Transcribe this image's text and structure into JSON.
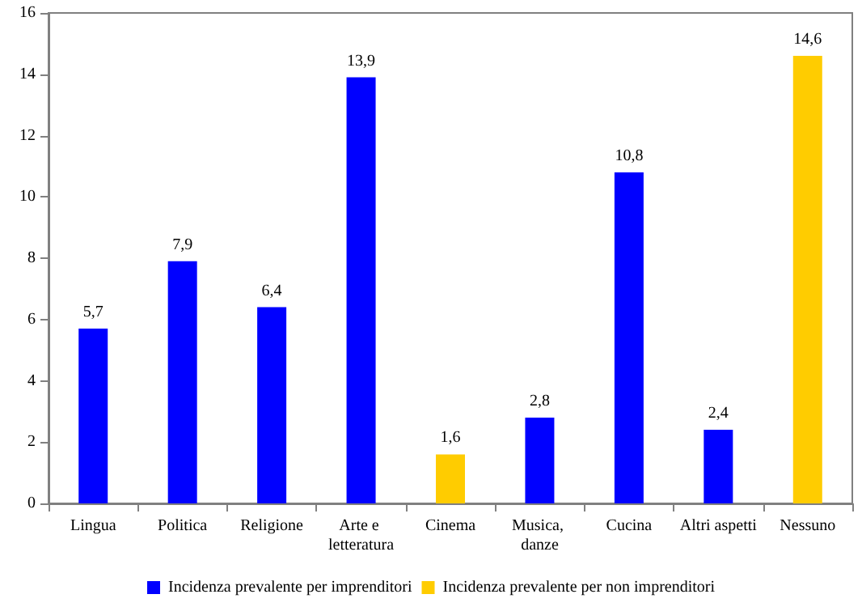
{
  "chart_data": {
    "type": "bar",
    "categories": [
      "Lingua",
      "Politica",
      "Religione",
      "Arte e letteratura",
      "Cinema",
      "Musica, danze",
      "Cucina",
      "Altri aspetti",
      "Nessuno"
    ],
    "series": [
      {
        "name": "Incidenza prevalente per imprenditori",
        "color": "#0000ff",
        "values": [
          5.7,
          7.9,
          6.4,
          13.9,
          null,
          2.8,
          10.8,
          2.4,
          null
        ],
        "value_labels": [
          "5,7",
          "7,9",
          "6,4",
          "13,9",
          null,
          "2,8",
          "10,8",
          "2,4",
          null
        ]
      },
      {
        "name": "Incidenza prevalente per non imprenditori",
        "color": "#ffcc00",
        "values": [
          null,
          null,
          null,
          null,
          1.6,
          null,
          null,
          null,
          14.6
        ],
        "value_labels": [
          null,
          null,
          null,
          null,
          "1,6",
          null,
          null,
          null,
          "14,6"
        ]
      }
    ],
    "ylim": [
      0,
      16
    ],
    "yticks": [
      0,
      2,
      4,
      6,
      8,
      10,
      12,
      14,
      16
    ],
    "grid": false,
    "legend": "bottom"
  }
}
